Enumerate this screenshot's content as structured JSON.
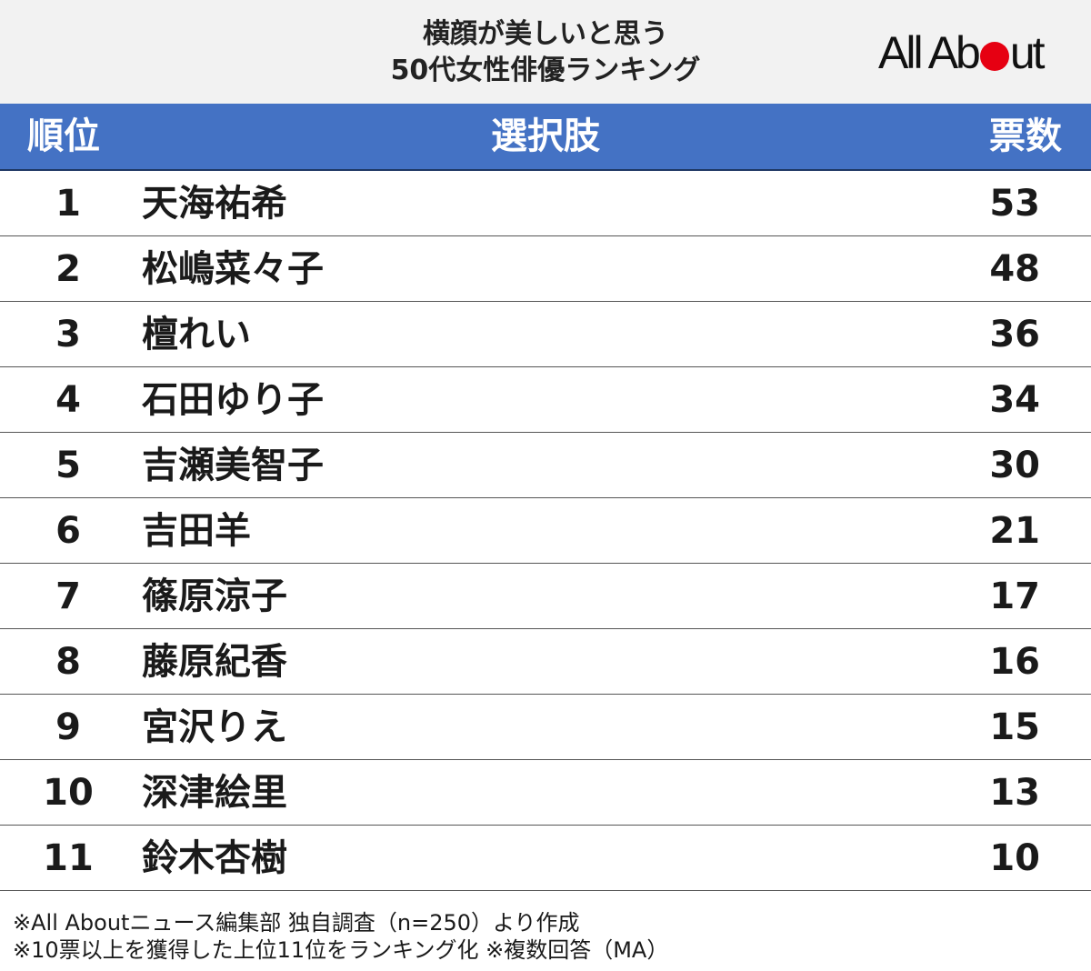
{
  "title": {
    "line1": "横顔が美しいと思う",
    "line2": "50代女性俳優ランキング"
  },
  "logo": {
    "text_left": "All Ab",
    "text_right": "ut",
    "circle_color": "#e60012"
  },
  "colors": {
    "header_bg": "#f2f2f2",
    "table_header_bg": "#4472c4",
    "table_header_text": "#ffffff"
  },
  "table": {
    "headers": {
      "rank": "順位",
      "choice": "選択肢",
      "votes": "票数"
    },
    "rows": [
      {
        "rank": "1",
        "name": "天海祐希",
        "votes": "53"
      },
      {
        "rank": "2",
        "name": "松嶋菜々子",
        "votes": "48"
      },
      {
        "rank": "3",
        "name": "檀れい",
        "votes": "36"
      },
      {
        "rank": "4",
        "name": "石田ゆり子",
        "votes": "34"
      },
      {
        "rank": "5",
        "name": "吉瀬美智子",
        "votes": "30"
      },
      {
        "rank": "6",
        "name": "吉田羊",
        "votes": "21"
      },
      {
        "rank": "7",
        "name": "篠原涼子",
        "votes": "17"
      },
      {
        "rank": "8",
        "name": "藤原紀香",
        "votes": "16"
      },
      {
        "rank": "9",
        "name": "宮沢りえ",
        "votes": "15"
      },
      {
        "rank": "10",
        "name": "深津絵里",
        "votes": "13"
      },
      {
        "rank": "11",
        "name": "鈴木杏樹",
        "votes": "10"
      }
    ]
  },
  "chart_data": {
    "type": "table",
    "columns": [
      "順位",
      "選択肢",
      "票数"
    ],
    "categories": [
      "天海祐希",
      "松嶋菜々子",
      "檀れい",
      "石田ゆり子",
      "吉瀬美智子",
      "吉田羊",
      "篠原涼子",
      "藤原紀香",
      "宮沢りえ",
      "深津絵里",
      "鈴木杏樹"
    ],
    "values": [
      53,
      48,
      36,
      34,
      30,
      21,
      17,
      16,
      15,
      13,
      10
    ],
    "ranks": [
      1,
      2,
      3,
      4,
      5,
      6,
      7,
      8,
      9,
      10,
      11
    ]
  },
  "footer": {
    "note1": "※All Aboutニュース編集部 独自調査（n=250）より作成",
    "note2": "※10票以上を獲得した上位11位をランキング化 ※複数回答（MA）"
  }
}
